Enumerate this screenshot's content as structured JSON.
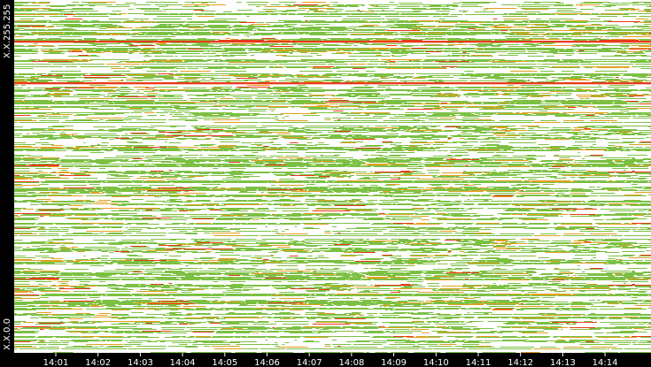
{
  "chart_data": {
    "type": "heatmap",
    "title": "",
    "xlabel": "",
    "ylabel": "",
    "x_ticks": [
      "14:01",
      "14:02",
      "14:03",
      "14:04",
      "14:05",
      "14:06",
      "14:07",
      "14:08",
      "14:09",
      "14:10",
      "14:11",
      "14:12",
      "14:13",
      "14:14"
    ],
    "y_labels": {
      "top": "X.X.255.255",
      "bottom": "X.X.0.0"
    },
    "x_range": [
      "14:00",
      "14:15"
    ],
    "y_range": [
      "X.X.0.0",
      "X.X.255.255"
    ],
    "legend": "none",
    "grid": false,
    "colors": {
      "background": "#ffffff",
      "frame": "#000000",
      "low": "#7cc043",
      "medium": "#e0a020",
      "high": "#e83a1a"
    }
  }
}
